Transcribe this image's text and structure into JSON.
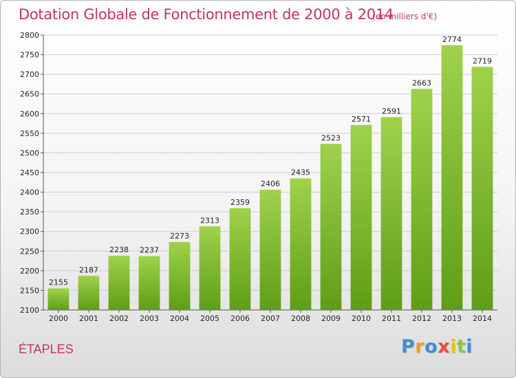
{
  "chart_data": {
    "type": "bar",
    "title": "Dotation Globale de Fonctionnement de 2000 à 2014",
    "subtitle": "(en milliers d'€)",
    "categories": [
      "2000",
      "2001",
      "2002",
      "2003",
      "2004",
      "2005",
      "2006",
      "2007",
      "2008",
      "2009",
      "2010",
      "2011",
      "2012",
      "2013",
      "2014"
    ],
    "values": [
      2155,
      2187,
      2238,
      2237,
      2273,
      2313,
      2359,
      2406,
      2435,
      2523,
      2571,
      2591,
      2663,
      2774,
      2719
    ],
    "xlabel": "",
    "ylabel": "",
    "ylim": [
      2100,
      2800
    ],
    "yticks": [
      2100,
      2150,
      2200,
      2250,
      2300,
      2350,
      2400,
      2450,
      2500,
      2550,
      2600,
      2650,
      2700,
      2750,
      2800
    ],
    "grid": true,
    "bar_color": "#7dbb2c",
    "grid_color": "#cccccc"
  },
  "location": "ÉTAPLES",
  "logo": {
    "letters": [
      "P",
      "r",
      "o",
      "x",
      "i",
      "t",
      "i"
    ],
    "colors": [
      "#3a8fd8",
      "#f39c12",
      "#3a8fd8",
      "#e74c3c",
      "#f1c40f",
      "#8cc63f",
      "#3a8fd8"
    ]
  }
}
